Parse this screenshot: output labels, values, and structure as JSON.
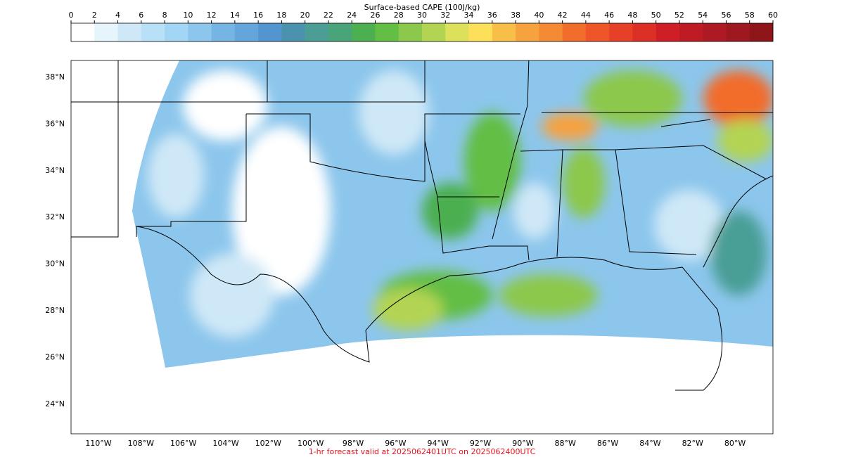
{
  "colorbar": {
    "title": "Surface-based CAPE (100J/kg)",
    "ticks": [
      0,
      2,
      4,
      6,
      8,
      10,
      12,
      14,
      16,
      18,
      20,
      22,
      24,
      26,
      28,
      30,
      32,
      34,
      36,
      38,
      40,
      42,
      44,
      46,
      48,
      50,
      52,
      54,
      56,
      58,
      60
    ],
    "colors": [
      "#ffffff",
      "#e6f4fc",
      "#cfe8f7",
      "#b8e0f6",
      "#a3d6f5",
      "#8cc6ec",
      "#75b5e3",
      "#64a6db",
      "#5295d0",
      "#4a92ad",
      "#4a9e96",
      "#4aa47a",
      "#4caf50",
      "#62be44",
      "#8cc84b",
      "#b3d453",
      "#dde05a",
      "#fce05a",
      "#f8bf48",
      "#f6a23f",
      "#f58a35",
      "#f26c2c",
      "#ee5528",
      "#e64126",
      "#dc3026",
      "#d01e27",
      "#be1b25",
      "#ae1a24",
      "#9e1820",
      "#8e1619"
    ]
  },
  "map": {
    "lat_ticks": [
      {
        "value": 38,
        "label": "38°N"
      },
      {
        "value": 36,
        "label": "36°N"
      },
      {
        "value": 34,
        "label": "34°N"
      },
      {
        "value": 32,
        "label": "32°N"
      },
      {
        "value": 30,
        "label": "30°N"
      },
      {
        "value": 28,
        "label": "28°N"
      },
      {
        "value": 26,
        "label": "26°N"
      },
      {
        "value": 24,
        "label": "24°N"
      }
    ],
    "lon_ticks": [
      {
        "value": -110,
        "label": "110°W"
      },
      {
        "value": -108,
        "label": "108°W"
      },
      {
        "value": -106,
        "label": "106°W"
      },
      {
        "value": -104,
        "label": "104°W"
      },
      {
        "value": -102,
        "label": "102°W"
      },
      {
        "value": -100,
        "label": "100°W"
      },
      {
        "value": -98,
        "label": "98°W"
      },
      {
        "value": -96,
        "label": "96°W"
      },
      {
        "value": -94,
        "label": "94°W"
      },
      {
        "value": -92,
        "label": "92°W"
      },
      {
        "value": -90,
        "label": "90°W"
      },
      {
        "value": -88,
        "label": "88°W"
      },
      {
        "value": -86,
        "label": "86°W"
      },
      {
        "value": -84,
        "label": "84°W"
      },
      {
        "value": -82,
        "label": "82°W"
      },
      {
        "value": -80,
        "label": "80°W"
      }
    ]
  },
  "footer": "1-hr forecast valid at 2025062401UTC on 2025062400UTC"
}
